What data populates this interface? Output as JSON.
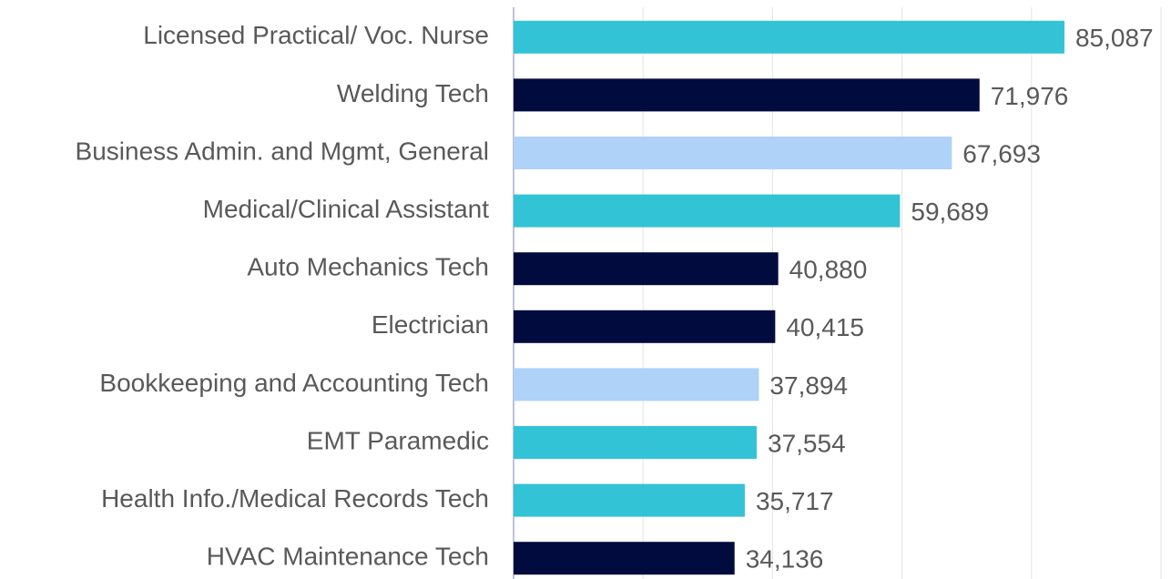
{
  "chart_data": {
    "type": "bar",
    "orientation": "horizontal",
    "categories": [
      "Licensed Practical/ Voc. Nurse",
      "Welding Tech",
      "Business Admin. and Mgmt, General",
      "Medical/Clinical Assistant",
      "Auto Mechanics Tech",
      "Electrician",
      "Bookkeeping and Accounting Tech",
      "EMT Paramedic",
      "Health Info./Medical Records Tech",
      "HVAC Maintenance Tech"
    ],
    "values": [
      85087,
      71976,
      67693,
      59689,
      40880,
      40415,
      37894,
      37554,
      35717,
      34136
    ],
    "value_labels": [
      "85,087",
      "71,976",
      "67,693",
      "59,689",
      "40,880",
      "40,415",
      "37,894",
      "37,554",
      "35,717",
      "34,136"
    ],
    "colors": [
      "#33c3d6",
      "#020b3d",
      "#aed2f8",
      "#33c3d6",
      "#020b3d",
      "#020b3d",
      "#aed2f8",
      "#33c3d6",
      "#33c3d6",
      "#020b3d"
    ],
    "xlim": [
      0,
      100000
    ],
    "xticks": [
      0,
      20000,
      40000,
      60000,
      80000,
      100000
    ],
    "grid": true
  }
}
